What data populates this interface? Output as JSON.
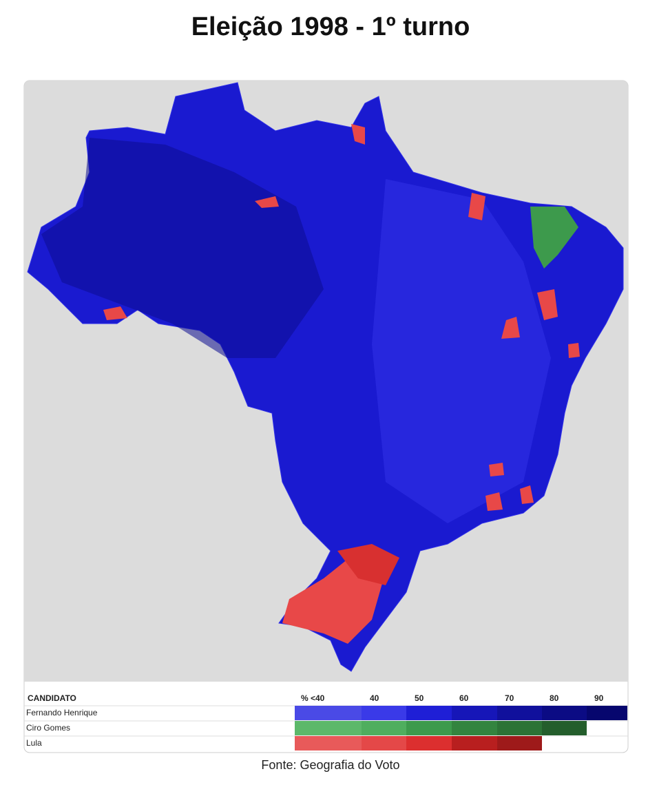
{
  "title": "Eleição 1998 - 1º turno",
  "legend": {
    "header": "CANDIDATO",
    "scale_labels": [
      "% <40",
      "40",
      "50",
      "60",
      "70",
      "80",
      "90"
    ],
    "rows": [
      {
        "name": "Fernando Henrique",
        "colors": [
          "#4a4ae6",
          "#3a3ae8",
          "#1f1fd6",
          "#1616b8",
          "#10109c",
          "#0b0b84",
          "#06066e"
        ]
      },
      {
        "name": "Ciro Gomes",
        "colors": [
          "#5cb86a",
          "#4fae5e",
          "#3d9a4c",
          "#33843f",
          "#2c7336",
          "#245e2c"
        ]
      },
      {
        "name": "Lula",
        "colors": [
          "#e85a5a",
          "#e44848",
          "#dc2f2f",
          "#b81f1f",
          "#9e1a1a"
        ]
      }
    ]
  },
  "source": "Fonte: Geografia do Voto"
}
